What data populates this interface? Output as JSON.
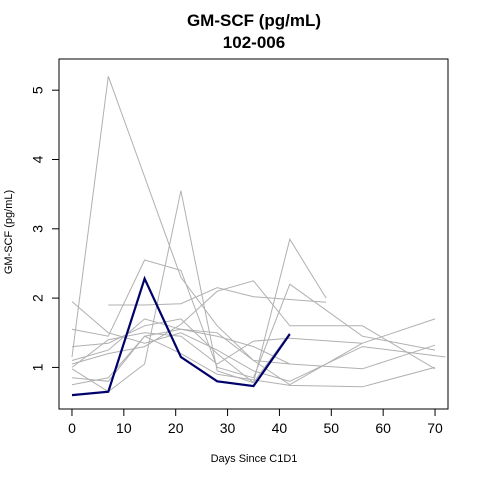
{
  "chart_data": {
    "type": "line",
    "title": "GM-SCF (pg/mL)",
    "subtitle": "102-006",
    "xlabel": "Days Since C1D1",
    "ylabel": "GM-SCF (pg/mL)",
    "xlim": [
      -2.5,
      72.5
    ],
    "ylim": [
      0.4,
      5.45
    ],
    "xticks": [
      0,
      10,
      20,
      30,
      40,
      50,
      60,
      70
    ],
    "yticks": [
      1,
      2,
      3,
      4,
      5
    ],
    "grid": false,
    "legend": "none",
    "highlight_color": "#00006b",
    "background_color": "#b0b0b0",
    "highlight": {
      "name": "102-006",
      "x": [
        0,
        7,
        14,
        21,
        28,
        35,
        42
      ],
      "y": [
        0.6,
        0.65,
        2.28,
        1.15,
        0.8,
        0.73,
        1.48
      ]
    },
    "background_series": [
      {
        "x": [
          0,
          7,
          21,
          28,
          35,
          42,
          56,
          70
        ],
        "y": [
          1.15,
          5.2,
          2.3,
          1.6,
          1.1,
          0.75,
          1.35,
          1.7
        ]
      },
      {
        "x": [
          0,
          7,
          14,
          21,
          28,
          35,
          42,
          49
        ],
        "y": [
          0.98,
          0.65,
          1.05,
          3.55,
          0.95,
          0.78,
          2.85,
          2.0
        ]
      },
      {
        "x": [
          7,
          14,
          21,
          28,
          35,
          42,
          49
        ],
        "y": [
          1.9,
          1.9,
          1.92,
          2.15,
          2.02,
          1.98,
          1.94
        ]
      },
      {
        "x": [
          0,
          7,
          14,
          21,
          28,
          35,
          42,
          56,
          70
        ],
        "y": [
          1.55,
          1.45,
          2.55,
          2.4,
          1.0,
          0.85,
          2.2,
          1.45,
          1.25
        ]
      },
      {
        "x": [
          0,
          7,
          14,
          21,
          28,
          35,
          42,
          56,
          72
        ],
        "y": [
          1.95,
          1.5,
          1.35,
          1.5,
          1.25,
          0.95,
          0.8,
          1.3,
          1.15
        ]
      },
      {
        "x": [
          0,
          7,
          14,
          21,
          28,
          35,
          42,
          56,
          70
        ],
        "y": [
          0.85,
          0.8,
          1.45,
          1.2,
          0.9,
          0.82,
          0.74,
          0.72,
          1.0
        ]
      },
      {
        "x": [
          0,
          7,
          14,
          21,
          28,
          35,
          42,
          49,
          56,
          70
        ],
        "y": [
          1.05,
          1.2,
          1.3,
          1.62,
          2.1,
          2.25,
          1.6,
          1.6,
          1.6,
          0.98
        ]
      },
      {
        "x": [
          0,
          7,
          14,
          21,
          28,
          35,
          42,
          56,
          70
        ],
        "y": [
          1.1,
          1.25,
          1.7,
          1.55,
          1.45,
          1.3,
          1.05,
          0.98,
          1.32
        ]
      },
      {
        "x": [
          0,
          7,
          14,
          21,
          28,
          35,
          42,
          56
        ],
        "y": [
          1.0,
          1.4,
          1.5,
          1.45,
          1.05,
          1.38,
          1.42,
          1.35
        ]
      },
      {
        "x": [
          0,
          7,
          14,
          21,
          28,
          35,
          42
        ],
        "y": [
          1.3,
          1.35,
          1.6,
          1.7,
          1.2,
          0.78,
          1.5
        ]
      },
      {
        "x": [
          0,
          7,
          14,
          21,
          28,
          35,
          42
        ],
        "y": [
          0.75,
          0.85,
          1.45,
          1.55,
          1.5,
          1.1,
          1.05
        ]
      }
    ]
  }
}
